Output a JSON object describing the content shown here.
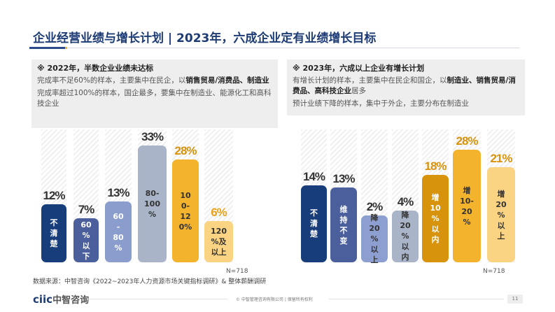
{
  "title": "企业经营业绩与增长计划 | 2023年，六成企业定有业绩增长目标",
  "left_box": {
    "heading": "※ 2022年，半数企业业绩未达标",
    "paragraphs": [
      [
        {
          "t": "完成率不足60%的样本，主要集中在民企，以"
        },
        {
          "t": "销售贸易/消费品、制造业",
          "b": true
        }
      ],
      [
        {
          "t": "完成率超过100%的样本，国企最多，要集中在制造业、能源化工和高科技企业"
        }
      ]
    ]
  },
  "right_box": {
    "heading": "※ 2023年，六成以上企业有增长计划",
    "paragraphs": [
      [
        {
          "t": "有增长计划的样本，主要集中在民企和国企，以"
        },
        {
          "t": "制造业、销售贸易/消费品、高科技企业",
          "b": true
        },
        {
          "t": "居多"
        }
      ],
      [
        {
          "t": "预计业绩下降的样本，集中于外企，主要分布在制造业"
        }
      ]
    ]
  },
  "chart_data": [
    {
      "type": "bar",
      "n_label": "N=718",
      "categories": [
        "不清楚",
        "60%以下",
        "60-80%",
        "80-100%",
        "100-120%",
        "120%及以上"
      ],
      "bar_labels": [
        "不\n清\n楚",
        "60\n%\n以\n下",
        "60\n-\n80\n%",
        "80-\n100\n%",
        "10\n0-\n12\n0%",
        "120\n%及\n以上"
      ],
      "values": [
        12,
        7,
        13,
        33,
        28,
        6
      ],
      "value_labels": [
        "12%",
        "7%",
        "13%",
        "33%",
        "28%",
        "6%"
      ],
      "colors": [
        "#173d7a",
        "#4b5f9c",
        "#8a9dcc",
        "#a9b4c8",
        "#f4b32c",
        "#fbd483"
      ],
      "value_colors": [
        "#333333",
        "#333333",
        "#333333",
        "#333333",
        "#d8930d",
        "#e8a31a"
      ],
      "text_colors": [
        "#ffffff",
        "#ffffff",
        "#ffffff",
        "#333333",
        "#333333",
        "#333333"
      ]
    },
    {
      "type": "bar",
      "n_label": "N=718",
      "categories": [
        "不清楚",
        "维持不变",
        "降20%以上",
        "降20%以内",
        "增10%以内",
        "增10-20%",
        "增20%以上"
      ],
      "bar_labels": [
        "不\n清\n楚",
        "维\n持\n不\n变",
        "降\n20\n%\n以\n上",
        "降\n20\n%\n以\n内",
        "增\n10\n%\n以\n内",
        "增\n10-\n20\n%",
        "增\n20\n%\n以\n上"
      ],
      "values": [
        14,
        13,
        2,
        4,
        18,
        28,
        21
      ],
      "value_labels": [
        "14%",
        "13%",
        "2%",
        "4%",
        "18%",
        "28%",
        "21%"
      ],
      "colors": [
        "#173d7a",
        "#4b5f9c",
        "#8d9fd0",
        "#a9b4c8",
        "#d8930d",
        "#f4b32c",
        "#fbd483"
      ],
      "value_colors": [
        "#333333",
        "#333333",
        "#333333",
        "#333333",
        "#d8930d",
        "#d8930d",
        "#d8930d"
      ],
      "text_colors": [
        "#ffffff",
        "#ffffff",
        "#333333",
        "#333333",
        "#ffffff",
        "#333333",
        "#333333"
      ]
    }
  ],
  "source": "数据来源：中智咨询《2022~2023年人力资源市场关键指标调研》& 整体薪酬调研",
  "footer": {
    "logo": "ciic中智咨询",
    "copyright": "© 中智管理咨询有限公司 | 保留所有权利",
    "page": "11"
  }
}
